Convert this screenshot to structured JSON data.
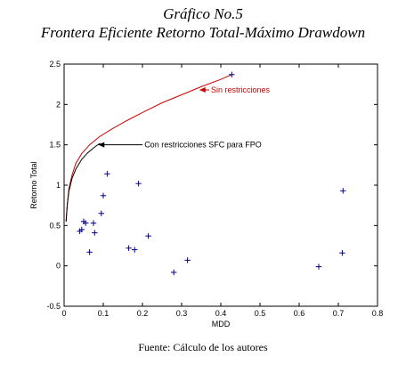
{
  "figure": {
    "title_line1": "Gráfico No.5",
    "title_line2": "Frontera Eficiente Retorno Total-Máximo Drawdown",
    "source": "Fuente: Cálculo de los autores"
  },
  "colors": {
    "unrestricted": "#cc0000",
    "restricted": "#000000",
    "points": "#00008b",
    "axis": "#000000"
  },
  "chart_data": {
    "type": "scatter",
    "xlabel": "MDD",
    "ylabel": "Retorno Total",
    "xlim": [
      0,
      0.8
    ],
    "ylim": [
      -0.5,
      2.5
    ],
    "xticks": [
      "0",
      "0.1",
      "0.2",
      "0.3",
      "0.4",
      "0.5",
      "0.6",
      "0.7",
      "0.8"
    ],
    "yticks": [
      "-0.5",
      "0",
      "0.5",
      "1",
      "1.5",
      "2",
      "2.5"
    ],
    "grid": false,
    "series": [
      {
        "type": "line",
        "color": "#cc0000",
        "x": [
          0.005,
          0.008,
          0.012,
          0.02,
          0.03,
          0.045,
          0.065,
          0.09,
          0.12,
          0.16,
          0.2,
          0.25,
          0.3,
          0.35,
          0.4,
          0.428
        ],
        "y": [
          0.55,
          0.75,
          0.95,
          1.12,
          1.27,
          1.39,
          1.5,
          1.6,
          1.69,
          1.8,
          1.9,
          2.02,
          2.12,
          2.22,
          2.31,
          2.37
        ]
      },
      {
        "type": "line",
        "color": "#000000",
        "x": [
          0.005,
          0.008,
          0.012,
          0.02,
          0.03,
          0.045,
          0.06,
          0.08,
          0.092
        ],
        "y": [
          0.55,
          0.75,
          0.92,
          1.08,
          1.2,
          1.32,
          1.4,
          1.48,
          1.52
        ]
      }
    ],
    "points": {
      "x": [
        0.04,
        0.045,
        0.05,
        0.055,
        0.065,
        0.075,
        0.078,
        0.095,
        0.1,
        0.11,
        0.165,
        0.18,
        0.19,
        0.215,
        0.28,
        0.315,
        0.428,
        0.65,
        0.71,
        0.712
      ],
      "y": [
        0.43,
        0.45,
        0.55,
        0.53,
        0.17,
        0.53,
        0.41,
        0.65,
        0.87,
        1.14,
        0.22,
        0.2,
        1.02,
        0.37,
        -0.08,
        0.07,
        2.37,
        -0.01,
        0.16,
        0.93
      ]
    },
    "annotations": [
      {
        "text": "Sin restricciones",
        "color": "#cc0000",
        "x": 0.375,
        "y": 2.18,
        "arrow_to_x": 0.345,
        "arrow_to_y": 2.18
      },
      {
        "text": "Con restricciones SFC para FPO",
        "color": "#000000",
        "x": 0.205,
        "y": 1.5,
        "arrow_to_x": 0.087,
        "arrow_to_y": 1.5
      }
    ]
  }
}
